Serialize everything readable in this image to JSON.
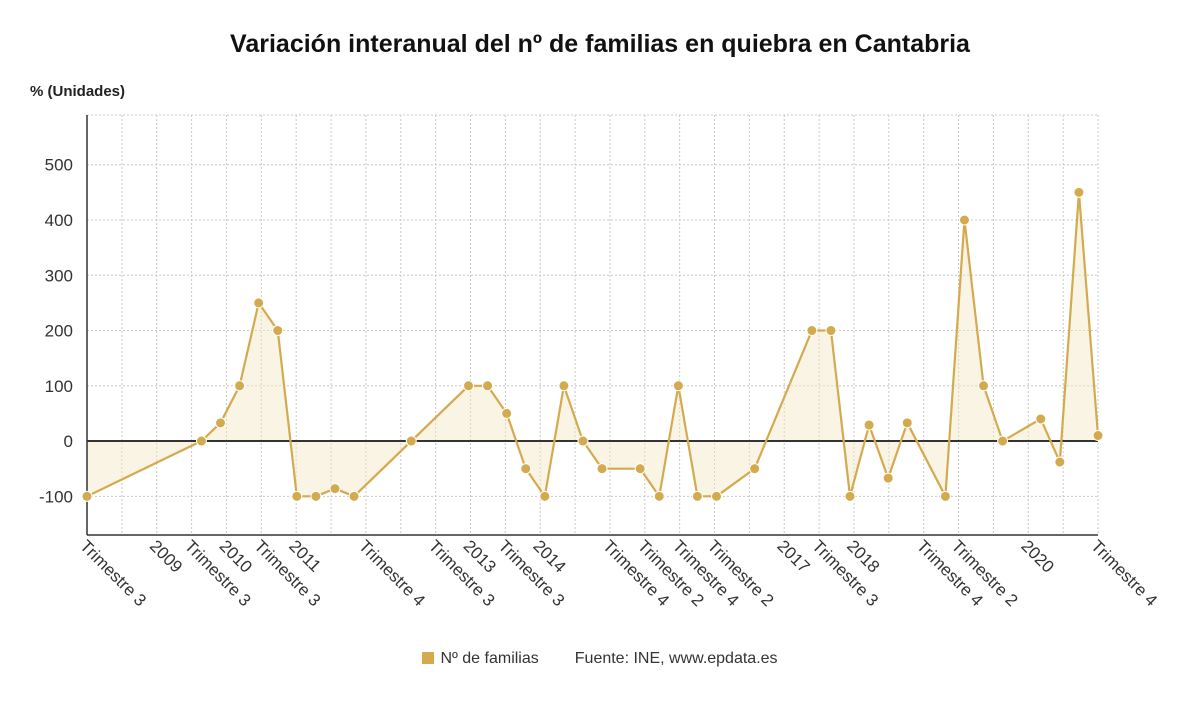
{
  "chart_data": {
    "type": "line",
    "title": "Variación interanual del nº de familias en quiebra en Cantabria",
    "ylabel": "% (Unidades)",
    "ylim": [
      -170,
      590
    ],
    "yticks": [
      -100,
      0,
      100,
      200,
      300,
      400,
      500
    ],
    "grid": true,
    "legend_position": "bottom-center",
    "x_ticks": [
      "Trimestre 3",
      "",
      "2009",
      "Trimestre 3",
      "2010",
      "Trimestre 3",
      "2011",
      "",
      "Trimestre 4",
      "",
      "Trimestre 3",
      "2013",
      "Trimestre 3",
      "2014",
      "",
      "Trimestre 4",
      "Trimestre 2",
      "Trimestre 4",
      "Trimestre 2",
      "",
      "2017",
      "Trimestre 3",
      "2018",
      "",
      "Trimestre 4",
      "Trimestre 2",
      "",
      "2020",
      "",
      "Trimestre 4"
    ],
    "series": [
      {
        "name": "Nº de familias",
        "color": "#d4aa4f",
        "points": [
          {
            "x": 0,
            "y": -100
          },
          {
            "x": 6,
            "y": 0
          },
          {
            "x": 7,
            "y": 33
          },
          {
            "x": 8,
            "y": 100
          },
          {
            "x": 9,
            "y": 250
          },
          {
            "x": 10,
            "y": 200
          },
          {
            "x": 11,
            "y": -100
          },
          {
            "x": 12,
            "y": -100
          },
          {
            "x": 13,
            "y": -86
          },
          {
            "x": 14,
            "y": -100
          },
          {
            "x": 17,
            "y": 0
          },
          {
            "x": 20,
            "y": 100
          },
          {
            "x": 21,
            "y": 100
          },
          {
            "x": 22,
            "y": 50
          },
          {
            "x": 23,
            "y": -50
          },
          {
            "x": 24,
            "y": -100
          },
          {
            "x": 25,
            "y": 100
          },
          {
            "x": 26,
            "y": 0
          },
          {
            "x": 27,
            "y": -50
          },
          {
            "x": 29,
            "y": -50
          },
          {
            "x": 30,
            "y": -100
          },
          {
            "x": 31,
            "y": 100
          },
          {
            "x": 32,
            "y": -100
          },
          {
            "x": 33,
            "y": -100
          },
          {
            "x": 35,
            "y": -50
          },
          {
            "x": 38,
            "y": 200
          },
          {
            "x": 39,
            "y": 200
          },
          {
            "x": 40,
            "y": -100
          },
          {
            "x": 41,
            "y": 29
          },
          {
            "x": 42,
            "y": -67
          },
          {
            "x": 43,
            "y": 33
          },
          {
            "x": 45,
            "y": -100
          },
          {
            "x": 46,
            "y": 400
          },
          {
            "x": 47,
            "y": 100
          },
          {
            "x": 48,
            "y": 0
          },
          {
            "x": 50,
            "y": 40
          },
          {
            "x": 51,
            "y": -38
          },
          {
            "x": 52,
            "y": 450
          },
          {
            "x": 53,
            "y": 10
          }
        ]
      }
    ],
    "source": "Fuente: INE, www.epdata.es"
  }
}
